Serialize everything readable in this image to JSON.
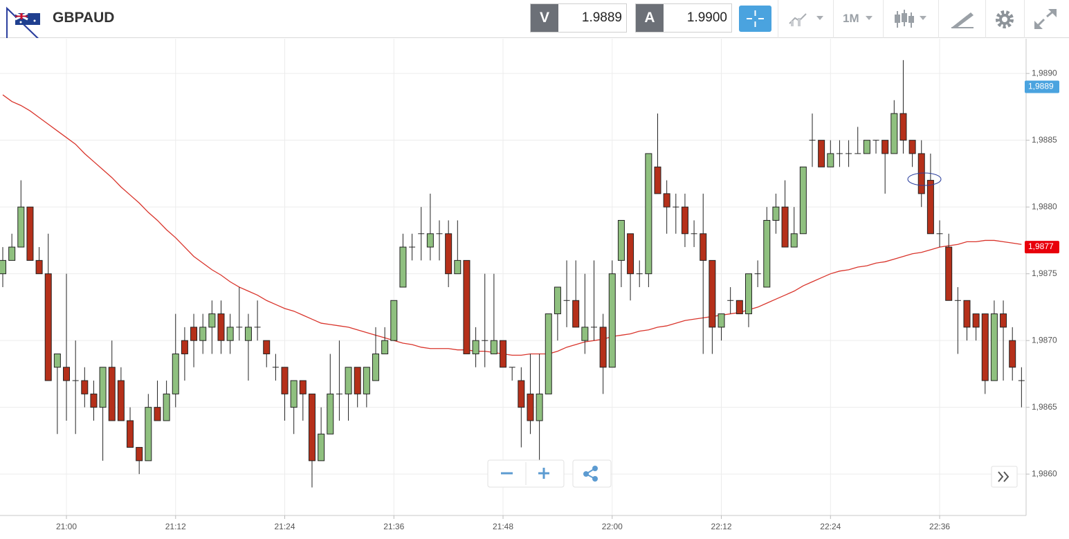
{
  "header": {
    "symbol": "GBPAUD",
    "bid_label": "V",
    "bid": "1.9889",
    "ask_label": "A",
    "ask": "1.9900",
    "timeframe": "1M"
  },
  "chart_data": {
    "type": "candlestick",
    "categories": [
      null,
      null,
      null,
      null,
      null,
      null,
      null,
      "21:00",
      null,
      null,
      null,
      null,
      null,
      null,
      null,
      null,
      null,
      null,
      null,
      "21:12",
      null,
      null,
      null,
      null,
      null,
      null,
      null,
      null,
      null,
      null,
      null,
      "21:24",
      null,
      null,
      null,
      null,
      null,
      null,
      null,
      null,
      null,
      null,
      null,
      "21:36",
      null,
      null,
      null,
      null,
      null,
      null,
      null,
      null,
      null,
      null,
      null,
      "21:48",
      null,
      null,
      null,
      null,
      null,
      null,
      null,
      null,
      null,
      null,
      null,
      "22:00",
      null,
      null,
      null,
      null,
      null,
      null,
      null,
      null,
      null,
      null,
      null,
      "22:12",
      null,
      null,
      null,
      null,
      null,
      null,
      null,
      null,
      null,
      null,
      null,
      "22:24",
      null,
      null,
      null,
      null,
      null,
      null,
      null,
      null,
      null,
      null,
      null,
      "22:36",
      null,
      null,
      null,
      null,
      null,
      null,
      null,
      null,
      null
    ],
    "open": [
      1.9875,
      1.9876,
      1.9877,
      1.988,
      1.9876,
      1.9875,
      1.9868,
      1.9868,
      1.9867,
      1.9867,
      1.9866,
      1.9865,
      1.9868,
      1.9867,
      1.9864,
      1.9862,
      1.9861,
      1.9865,
      1.9864,
      1.9866,
      1.987,
      1.9871,
      1.987,
      1.9871,
      1.9872,
      1.987,
      1.9871,
      1.987,
      1.9871,
      1.987,
      1.9868,
      1.9868,
      1.9865,
      1.9867,
      1.9866,
      1.9861,
      1.9863,
      1.9866,
      1.9866,
      1.9868,
      1.9866,
      1.9867,
      1.9869,
      1.987,
      1.9874,
      1.9877,
      1.9878,
      1.9877,
      1.9878,
      1.9878,
      1.9875,
      1.9876,
      1.9869,
      1.987,
      1.9869,
      1.987,
      1.9868,
      1.9867,
      1.9866,
      1.9864,
      1.9866,
      1.9872,
      1.9873,
      1.9873,
      1.987,
      1.9871,
      1.9871,
      1.9868,
      1.9876,
      1.9878,
      1.9875,
      1.9875,
      1.9883,
      1.9881,
      1.988,
      1.988,
      1.9878,
      1.9878,
      1.9876,
      1.9871,
      1.9873,
      1.9873,
      1.9872,
      1.9875,
      1.9874,
      1.9879,
      1.988,
      1.9877,
      1.9878,
      1.9885,
      1.9885,
      1.9883,
      1.9884,
      1.9884,
      1.9884,
      1.9884,
      1.9885,
      1.9885,
      1.9884,
      1.9887,
      1.9885,
      1.9884,
      1.9882,
      1.9878,
      1.9877,
      1.9873,
      1.9873,
      1.9872,
      1.9872,
      1.9867,
      1.9872,
      1.987,
      1.9867
    ],
    "high": [
      1.9877,
      1.9878,
      1.9882,
      1.988,
      1.9877,
      1.9878,
      1.9869,
      1.9875,
      1.987,
      1.9868,
      1.9867,
      1.9868,
      1.987,
      1.9868,
      1.9865,
      1.9862,
      1.9866,
      1.9867,
      1.9867,
      1.9872,
      1.9871,
      1.9872,
      1.9872,
      1.9873,
      1.9873,
      1.9872,
      1.9874,
      1.9872,
      1.9873,
      1.987,
      1.9869,
      1.9868,
      1.9867,
      1.9867,
      1.9866,
      1.9865,
      1.9869,
      1.987,
      1.9868,
      1.9868,
      1.9868,
      1.9871,
      1.9871,
      1.9873,
      1.9878,
      1.9878,
      1.988,
      1.9881,
      1.9879,
      1.9879,
      1.9879,
      1.9876,
      1.9871,
      1.9875,
      1.9875,
      1.987,
      1.9868,
      1.9868,
      1.9869,
      1.9869,
      1.9872,
      1.9874,
      1.9876,
      1.9876,
      1.9875,
      1.9876,
      1.9872,
      1.9876,
      1.9879,
      1.9878,
      1.9876,
      1.9884,
      1.9887,
      1.9882,
      1.9881,
      1.9881,
      1.9879,
      1.9881,
      1.9876,
      1.9872,
      1.9874,
      1.9873,
      1.9875,
      1.9876,
      1.988,
      1.9881,
      1.9882,
      1.988,
      1.9883,
      1.9887,
      1.9885,
      1.9885,
      1.9885,
      1.9885,
      1.9886,
      1.9885,
      1.9885,
      1.9885,
      1.9888,
      1.9891,
      1.9885,
      1.9885,
      1.9884,
      1.9879,
      1.9878,
      1.9874,
      1.9873,
      1.9872,
      1.9872,
      1.9873,
      1.9873,
      1.9871,
      1.9868
    ],
    "low": [
      1.9874,
      1.9876,
      1.9877,
      1.9876,
      1.9875,
      1.9867,
      1.9863,
      1.9864,
      1.9863,
      1.9865,
      1.9864,
      1.9861,
      1.9864,
      1.9864,
      1.9862,
      1.986,
      1.9861,
      1.9864,
      1.9864,
      1.9865,
      1.9867,
      1.9868,
      1.9869,
      1.9869,
      1.9869,
      1.9869,
      1.987,
      1.9867,
      1.987,
      1.9868,
      1.9867,
      1.9864,
      1.9863,
      1.9864,
      1.9859,
      1.9861,
      1.9863,
      1.9864,
      1.9864,
      1.9865,
      1.9865,
      1.9867,
      1.9869,
      1.987,
      1.9874,
      1.9876,
      1.9876,
      1.9876,
      1.9876,
      1.9874,
      1.9875,
      1.9869,
      1.9868,
      1.9868,
      1.9869,
      1.9868,
      1.9867,
      1.9862,
      1.9863,
      1.9861,
      1.9866,
      1.987,
      1.9871,
      1.9871,
      1.9869,
      1.987,
      1.9866,
      1.9868,
      1.9874,
      1.9873,
      1.9874,
      1.9874,
      1.9881,
      1.9878,
      1.9878,
      1.9877,
      1.9877,
      1.9869,
      1.9869,
      1.987,
      1.9872,
      1.9872,
      1.9871,
      1.9874,
      1.9874,
      1.9878,
      1.9877,
      1.9877,
      1.9878,
      1.9883,
      1.9883,
      1.9883,
      1.9883,
      1.9883,
      1.9884,
      1.9884,
      1.9884,
      1.9881,
      1.9884,
      1.9884,
      1.9883,
      1.988,
      1.9878,
      1.9877,
      1.9873,
      1.9869,
      1.987,
      1.987,
      1.9866,
      1.9867,
      1.9867,
      1.9867,
      1.9865
    ],
    "close": [
      1.9876,
      1.9877,
      1.988,
      1.9876,
      1.9875,
      1.9867,
      1.9869,
      1.9867,
      1.9867,
      1.9866,
      1.9865,
      1.9868,
      1.9864,
      1.9864,
      1.9862,
      1.9861,
      1.9865,
      1.9864,
      1.9866,
      1.9869,
      1.9869,
      1.987,
      1.9871,
      1.9872,
      1.987,
      1.9871,
      1.9871,
      1.9871,
      1.9871,
      1.9869,
      1.9868,
      1.9866,
      1.9867,
      1.9866,
      1.9861,
      1.9863,
      1.9866,
      1.9866,
      1.9868,
      1.9866,
      1.9868,
      1.9869,
      1.987,
      1.9873,
      1.9877,
      1.9877,
      1.9878,
      1.9878,
      1.9878,
      1.9875,
      1.9876,
      1.9869,
      1.987,
      1.987,
      1.987,
      1.9868,
      1.9868,
      1.9865,
      1.9864,
      1.9866,
      1.9872,
      1.9874,
      1.9873,
      1.9871,
      1.9871,
      1.9871,
      1.9868,
      1.9875,
      1.9879,
      1.9875,
      1.9875,
      1.9884,
      1.9881,
      1.988,
      1.988,
      1.9878,
      1.9878,
      1.9876,
      1.9871,
      1.9872,
      1.9873,
      1.9872,
      1.9875,
      1.9875,
      1.9879,
      1.988,
      1.9877,
      1.9878,
      1.9883,
      1.9885,
      1.9883,
      1.9884,
      1.9884,
      1.9884,
      1.9884,
      1.9885,
      1.9885,
      1.9884,
      1.9887,
      1.9885,
      1.9884,
      1.9881,
      1.9878,
      1.9878,
      1.9873,
      1.9873,
      1.9871,
      1.9871,
      1.9867,
      1.9872,
      1.9871,
      1.9868,
      1.9867
    ],
    "up_color": "#8fc07f",
    "down_color": "#b5301a",
    "moving_average": {
      "color": "#d9342b",
      "values": [
        1.98884,
        1.98879,
        1.98876,
        1.98872,
        1.98867,
        1.98862,
        1.98857,
        1.98852,
        1.98847,
        1.9884,
        1.98834,
        1.98828,
        1.98822,
        1.98815,
        1.98809,
        1.98803,
        1.98796,
        1.9879,
        1.98783,
        1.98777,
        1.9877,
        1.98763,
        1.98758,
        1.98753,
        1.98749,
        1.98744,
        1.9874,
        1.98737,
        1.98734,
        1.9873,
        1.98727,
        1.98724,
        1.98722,
        1.98719,
        1.98716,
        1.98713,
        1.98712,
        1.98711,
        1.9871,
        1.98708,
        1.98706,
        1.98704,
        1.98702,
        1.987,
        1.98698,
        1.98697,
        1.98695,
        1.98694,
        1.98694,
        1.98694,
        1.98693,
        1.98693,
        1.98692,
        1.98692,
        1.98691,
        1.9869,
        1.98689,
        1.98689,
        1.9869,
        1.9869,
        1.9869,
        1.98692,
        1.98695,
        1.98697,
        1.98699,
        1.987,
        1.98701,
        1.98703,
        1.98704,
        1.98705,
        1.98707,
        1.98708,
        1.9871,
        1.98711,
        1.98713,
        1.98715,
        1.98716,
        1.98717,
        1.98718,
        1.98719,
        1.9872,
        1.98721,
        1.98723,
        1.98725,
        1.98728,
        1.98731,
        1.98734,
        1.98737,
        1.98741,
        1.98744,
        1.98747,
        1.9875,
        1.98752,
        1.98753,
        1.98755,
        1.98756,
        1.98758,
        1.98759,
        1.98761,
        1.98763,
        1.98765,
        1.98766,
        1.98768,
        1.9877,
        1.98771,
        1.98772,
        1.98774,
        1.98774,
        1.98775,
        1.98775,
        1.98774,
        1.98773,
        1.98772
      ]
    },
    "ylim": [
      1.98569,
      1.98926
    ],
    "yticks": [
      {
        "value": 1.986,
        "label": "1,9860"
      },
      {
        "value": 1.9865,
        "label": "1,9865"
      },
      {
        "value": 1.987,
        "label": "1,9870"
      },
      {
        "value": 1.9875,
        "label": "1,9875"
      },
      {
        "value": 1.988,
        "label": "1,9880"
      },
      {
        "value": 1.9885,
        "label": "1,9885"
      },
      {
        "value": 1.989,
        "label": "1,9890"
      }
    ],
    "grid": true,
    "price_tags": [
      {
        "value": 1.9889,
        "label": "1,9889",
        "color": "#4aa3df"
      },
      {
        "value": 1.9877,
        "label": "1,9877",
        "color": "#e8000b"
      }
    ]
  }
}
